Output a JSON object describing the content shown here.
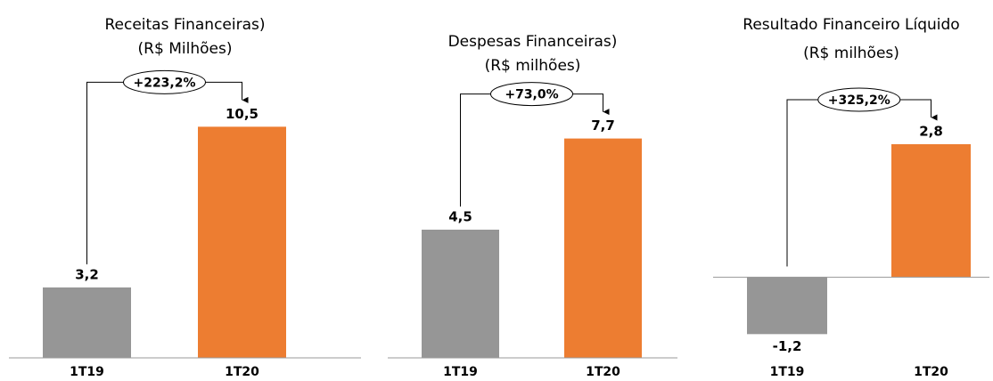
{
  "chart_data": [
    {
      "type": "bar",
      "title": "Receitas Financeiras)",
      "subtitle": "(R$ Milhões)",
      "categories": [
        "1T19",
        "1T20"
      ],
      "values": [
        3.2,
        10.5
      ],
      "value_labels": [
        "3,2",
        "10,5"
      ],
      "colors": [
        "#969696",
        "#ed7d31"
      ],
      "annotation": "+223,2%",
      "ylim": [
        0,
        11
      ]
    },
    {
      "type": "bar",
      "title": "Despesas Financeiras)",
      "subtitle": "(R$ milhões)",
      "categories": [
        "1T19",
        "1T20"
      ],
      "values": [
        4.5,
        7.7
      ],
      "value_labels": [
        "4,5",
        "7,7"
      ],
      "colors": [
        "#969696",
        "#ed7d31"
      ],
      "annotation": "+73,0%",
      "ylim": [
        0,
        8.5
      ]
    },
    {
      "type": "bar",
      "title": "Resultado Financeiro Líquido",
      "subtitle": "(R$ milhões)",
      "categories": [
        "1T19",
        "1T20"
      ],
      "values": [
        -1.2,
        2.8
      ],
      "value_labels": [
        "-1,2",
        "2,8"
      ],
      "colors": [
        "#969696",
        "#ed7d31"
      ],
      "annotation": "+325,2%",
      "ylim": [
        -1.7,
        3.4
      ]
    }
  ]
}
